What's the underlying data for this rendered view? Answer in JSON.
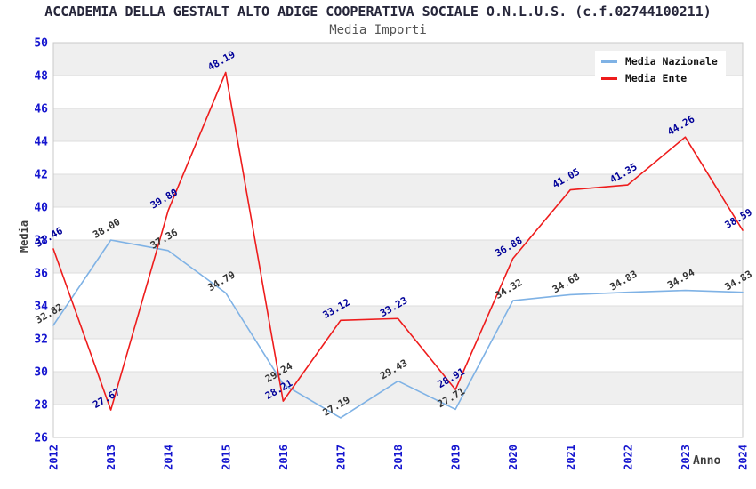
{
  "header": {
    "title": "ACCADEMIA DELLA GESTALT ALTO ADIGE COOPERATIVA SOCIALE O.N.L.U.S. (c.f.02744100211)",
    "subtitle": "Media Importi"
  },
  "chart_data": {
    "type": "line",
    "title": "ACCADEMIA DELLA GESTALT ALTO ADIGE COOPERATIVA SOCIALE O.N.L.U.S. (c.f.02744100211)",
    "subtitle": "Media Importi",
    "xlabel": "Anno",
    "ylabel": "Media",
    "ylim": [
      26,
      50
    ],
    "ytick_step": 2,
    "grid": "horizontal-bands",
    "legend_position": "top-right",
    "categories": [
      "2012",
      "2013",
      "2014",
      "2015",
      "2016",
      "2017",
      "2018",
      "2019",
      "2020",
      "2021",
      "2022",
      "2023",
      "2024"
    ],
    "series": [
      {
        "name": "Media Nazionale",
        "color": "#7fb2e5",
        "label_color": "#333333",
        "values": [
          32.82,
          38.0,
          37.36,
          34.79,
          29.24,
          27.19,
          29.43,
          27.71,
          34.32,
          34.68,
          34.83,
          34.94,
          34.83
        ]
      },
      {
        "name": "Media Ente",
        "color": "#ee1c1c",
        "label_color": "#000099",
        "values": [
          37.46,
          27.67,
          39.8,
          48.19,
          28.21,
          33.12,
          33.23,
          28.91,
          36.88,
          41.05,
          41.35,
          44.26,
          38.59
        ]
      }
    ],
    "colors": {
      "tick_label": "#1515cf",
      "band": "#efefef",
      "gridline": "#dcdcdc",
      "border": "#c8c8c8",
      "axis_title": "#3c3c3c",
      "title": "#26263a",
      "subtitle": "#555555"
    }
  }
}
